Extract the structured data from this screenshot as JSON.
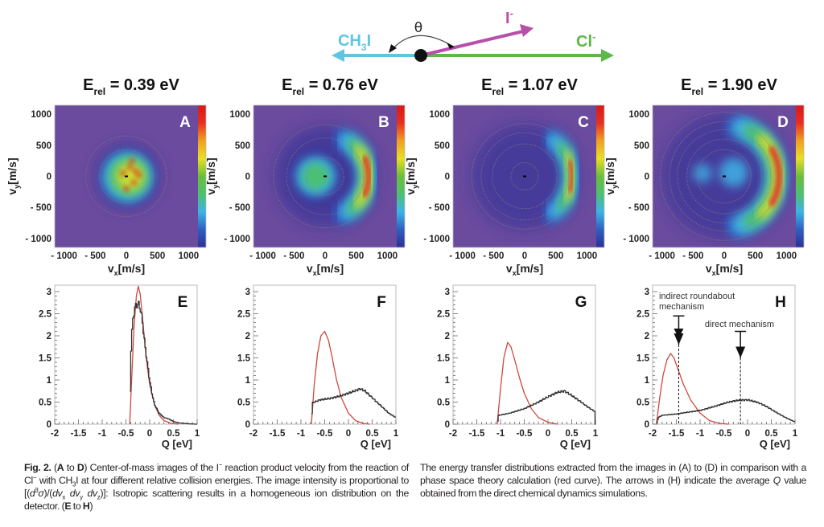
{
  "diagram": {
    "theta": "θ",
    "ch3i": {
      "main": "CH",
      "sub": "3",
      "end": "I"
    },
    "iminus": {
      "main": "I",
      "sup": "-"
    },
    "clminus": {
      "main": "Cl",
      "sup": "-"
    },
    "colors": {
      "ch3i": "#5ec6e0",
      "iminus": "#b84fa8",
      "clminus": "#5cb848"
    }
  },
  "image_panels": [
    {
      "letter": "A",
      "erel": {
        "main": "E",
        "sub": "rel",
        "value": " = 0.39 eV"
      }
    },
    {
      "letter": "B",
      "erel": {
        "main": "E",
        "sub": "rel",
        "value": " = 0.76 eV"
      }
    },
    {
      "letter": "C",
      "erel": {
        "main": "E",
        "sub": "rel",
        "value": " = 1.07 eV"
      }
    },
    {
      "letter": "D",
      "erel": {
        "main": "E",
        "sub": "rel",
        "value": " = 1.90 eV"
      }
    }
  ],
  "image_axes": {
    "xlabel": {
      "main": "v",
      "sub": "x",
      "unit": "[m/s]"
    },
    "ylabel": {
      "main": "v",
      "sub": "y",
      "unit": "[m/s]"
    },
    "xticks": [
      "- 1000",
      "- 500",
      "0",
      "500",
      "1000"
    ],
    "yticks": [
      "1000",
      "500",
      "0",
      "- 500",
      "- 1000"
    ],
    "tick_values": [
      -1000,
      -500,
      0,
      500,
      1000
    ],
    "range": [
      -1150,
      1150
    ],
    "colormap": [
      "#2c2f96",
      "#2f5fc0",
      "#3cb4e6",
      "#4cc070",
      "#6abf3a",
      "#e8e020",
      "#f0a020",
      "#e83020",
      "#d81818"
    ]
  },
  "chart_data": [
    {
      "type": "line",
      "letter": "E",
      "xlabel": "Q [eV]",
      "xlim": [
        -2,
        1
      ],
      "ylim": [
        0,
        3.2
      ],
      "grid": false,
      "xticks": [
        "-2",
        "-1.5",
        "-1",
        "-0.5",
        "0",
        "0.5",
        "1"
      ],
      "yticks": [
        "0",
        "0.5",
        "1",
        "1.5",
        "2",
        "2.5",
        "3"
      ],
      "series": [
        {
          "color": "#d0483a",
          "style": "smooth",
          "points": [
            [
              -0.42,
              0
            ],
            [
              -0.38,
              1
            ],
            [
              -0.33,
              2.2
            ],
            [
              -0.28,
              2.9
            ],
            [
              -0.24,
              3.12
            ],
            [
              -0.2,
              2.95
            ],
            [
              -0.15,
              2.4
            ],
            [
              -0.1,
              1.8
            ],
            [
              -0.05,
              1.3
            ],
            [
              0,
              0.9
            ],
            [
              0.1,
              0.45
            ],
            [
              0.2,
              0.2
            ],
            [
              0.3,
              0.08
            ],
            [
              0.45,
              0.02
            ],
            [
              0.6,
              0
            ]
          ]
        },
        {
          "color": "#333333",
          "style": "step",
          "points": [
            [
              -0.42,
              0
            ],
            [
              -0.4,
              1.5
            ],
            [
              -0.36,
              2.3
            ],
            [
              -0.32,
              2.6
            ],
            [
              -0.28,
              2.7
            ],
            [
              -0.24,
              2.72
            ],
            [
              -0.2,
              2.65
            ],
            [
              -0.15,
              2.3
            ],
            [
              -0.1,
              1.8
            ],
            [
              -0.05,
              1.4
            ],
            [
              0,
              1.0
            ],
            [
              0.05,
              0.7
            ],
            [
              0.1,
              0.45
            ],
            [
              0.2,
              0.25
            ],
            [
              0.3,
              0.15
            ],
            [
              0.4,
              0.12
            ],
            [
              0.5,
              0.06
            ],
            [
              0.6,
              0.03
            ],
            [
              0.8,
              0.01
            ],
            [
              1,
              0
            ]
          ]
        }
      ]
    },
    {
      "type": "line",
      "letter": "F",
      "xlabel": "Q [eV]",
      "xlim": [
        -2,
        1
      ],
      "ylim": [
        0,
        3.2
      ],
      "grid": false,
      "xticks": [
        "-2",
        "-1.5",
        "-1",
        "-0.5",
        "0",
        "0.5",
        "1"
      ],
      "yticks": [
        "0",
        "0.5",
        "1",
        "1.5",
        "2",
        "2.5",
        "3"
      ],
      "series": [
        {
          "color": "#d0483a",
          "style": "smooth",
          "points": [
            [
              -0.78,
              0
            ],
            [
              -0.72,
              0.9
            ],
            [
              -0.65,
              1.6
            ],
            [
              -0.58,
              2.0
            ],
            [
              -0.5,
              2.1
            ],
            [
              -0.42,
              1.9
            ],
            [
              -0.35,
              1.55
            ],
            [
              -0.25,
              1.0
            ],
            [
              -0.15,
              0.6
            ],
            [
              0,
              0.25
            ],
            [
              0.15,
              0.08
            ],
            [
              0.3,
              0.02
            ],
            [
              0.45,
              0
            ]
          ]
        },
        {
          "color": "#333333",
          "style": "step",
          "points": [
            [
              -0.78,
              0
            ],
            [
              -0.76,
              0.48
            ],
            [
              -0.6,
              0.55
            ],
            [
              -0.4,
              0.58
            ],
            [
              -0.2,
              0.63
            ],
            [
              0,
              0.7
            ],
            [
              0.15,
              0.76
            ],
            [
              0.25,
              0.8
            ],
            [
              0.35,
              0.75
            ],
            [
              0.5,
              0.6
            ],
            [
              0.7,
              0.4
            ],
            [
              0.85,
              0.25
            ],
            [
              1,
              0.15
            ]
          ]
        }
      ]
    },
    {
      "type": "line",
      "letter": "G",
      "xlabel": "Q [eV]",
      "xlim": [
        -2,
        1
      ],
      "ylim": [
        0,
        3.2
      ],
      "grid": false,
      "xticks": [
        "-2",
        "-1.5",
        "-1",
        "-0.5",
        "0",
        "0.5",
        "1"
      ],
      "yticks": [
        "0",
        "0.5",
        "1",
        "1.5",
        "2",
        "2.5",
        "3"
      ],
      "series": [
        {
          "color": "#d0483a",
          "style": "smooth",
          "points": [
            [
              -1.07,
              0
            ],
            [
              -1.0,
              0.8
            ],
            [
              -0.93,
              1.5
            ],
            [
              -0.85,
              1.85
            ],
            [
              -0.78,
              1.75
            ],
            [
              -0.7,
              1.45
            ],
            [
              -0.6,
              1.05
            ],
            [
              -0.5,
              0.7
            ],
            [
              -0.35,
              0.35
            ],
            [
              -0.2,
              0.15
            ],
            [
              0,
              0.04
            ],
            [
              0.2,
              0
            ]
          ]
        },
        {
          "color": "#333333",
          "style": "step",
          "points": [
            [
              -1.07,
              0
            ],
            [
              -1.04,
              0.2
            ],
            [
              -0.8,
              0.25
            ],
            [
              -0.5,
              0.35
            ],
            [
              -0.2,
              0.5
            ],
            [
              0,
              0.62
            ],
            [
              0.2,
              0.72
            ],
            [
              0.35,
              0.75
            ],
            [
              0.5,
              0.65
            ],
            [
              0.7,
              0.5
            ],
            [
              0.85,
              0.38
            ],
            [
              1,
              0.28
            ]
          ]
        }
      ]
    },
    {
      "type": "line",
      "letter": "H",
      "xlabel": "Q [eV]",
      "xlim": [
        -2,
        1
      ],
      "ylim": [
        0,
        3.2
      ],
      "grid": false,
      "xticks": [
        "-2",
        "-1.5",
        "-1",
        "-0.5",
        "0",
        "0.5",
        "1"
      ],
      "yticks": [
        "0",
        "0.5",
        "1",
        "1.5",
        "2",
        "2.5",
        "3"
      ],
      "series": [
        {
          "color": "#d0483a",
          "style": "smooth",
          "points": [
            [
              -1.92,
              0
            ],
            [
              -1.85,
              0.6
            ],
            [
              -1.78,
              1.1
            ],
            [
              -1.7,
              1.45
            ],
            [
              -1.62,
              1.6
            ],
            [
              -1.55,
              1.5
            ],
            [
              -1.45,
              1.2
            ],
            [
              -1.35,
              0.9
            ],
            [
              -1.2,
              0.55
            ],
            [
              -1.0,
              0.25
            ],
            [
              -0.8,
              0.08
            ],
            [
              -0.6,
              0.02
            ],
            [
              -0.4,
              0
            ]
          ]
        },
        {
          "color": "#333333",
          "style": "step",
          "points": [
            [
              -1.92,
              0
            ],
            [
              -1.88,
              0.15
            ],
            [
              -1.8,
              0.2
            ],
            [
              -1.5,
              0.23
            ],
            [
              -1.2,
              0.28
            ],
            [
              -1.0,
              0.31
            ],
            [
              -0.7,
              0.4
            ],
            [
              -0.4,
              0.5
            ],
            [
              -0.2,
              0.54
            ],
            [
              0,
              0.55
            ],
            [
              0.2,
              0.5
            ],
            [
              0.4,
              0.4
            ],
            [
              0.6,
              0.27
            ],
            [
              0.8,
              0.15
            ],
            [
              1,
              0.05
            ]
          ]
        }
      ],
      "annotations": [
        {
          "lines": [
            "indirect roundabout",
            "mechanism"
          ],
          "q": -1.45,
          "bar_top": 2.45,
          "head": 1.8
        },
        {
          "lines": [
            "direct mechanism"
          ],
          "q": -0.15,
          "bar_top": 2.1,
          "head": 1.5
        }
      ]
    }
  ],
  "caption": {
    "left": [
      {
        "t": "Fig. 2.",
        "b": true
      },
      {
        "t": " ("
      },
      {
        "t": "A",
        "b": true
      },
      {
        "t": " to "
      },
      {
        "t": "D",
        "b": true
      },
      {
        "t": ") Center-of-mass images of the I"
      },
      {
        "t": "−",
        "sup": true
      },
      {
        "t": " reaction product velocity from the reaction of Cl"
      },
      {
        "t": "−",
        "sup": true
      },
      {
        "t": " with CH"
      },
      {
        "t": "3",
        "sub": true
      },
      {
        "t": "I at four different relative collision energies. The image intensity is proportional to [("
      },
      {
        "t": "d",
        "i": true
      },
      {
        "t": "3",
        "sup": true
      },
      {
        "t": "σ",
        "i": true
      },
      {
        "t": ")/("
      },
      {
        "t": "dv",
        "i": true
      },
      {
        "t": "x",
        "sub": true
      },
      {
        "t": " "
      },
      {
        "t": "dv",
        "i": true
      },
      {
        "t": "y",
        "sub": true
      },
      {
        "t": " "
      },
      {
        "t": "dv",
        "i": true
      },
      {
        "t": "z",
        "sub": true
      },
      {
        "t": ")]: Isotropic scattering results in a homogeneous ion distribution on the detector. ("
      },
      {
        "t": "E",
        "b": true
      },
      {
        "t": " to "
      },
      {
        "t": "H",
        "b": true
      },
      {
        "t": ")"
      }
    ],
    "right": [
      {
        "t": "The energy transfer distributions extracted from the images in (A) to (D) in comparison with a phase space theory calculation (red curve). The arrows in (H) indicate the average "
      },
      {
        "t": "Q",
        "i": true
      },
      {
        "t": " value obtained from the direct chemical dynamics simulations."
      }
    ]
  }
}
